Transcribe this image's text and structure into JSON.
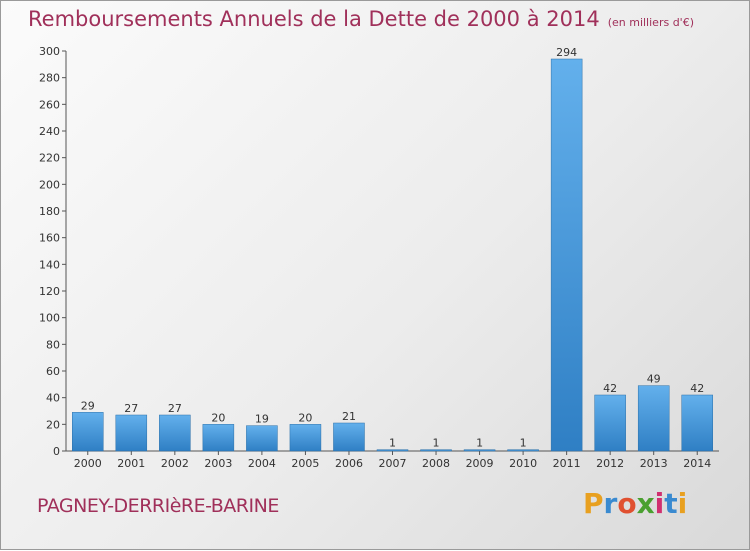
{
  "title": "Remboursements Annuels de la Dette de 2000 à 2014",
  "unit": "(en milliers d'€)",
  "commune": "PAGNEY-DERRIèRE-BARINE",
  "logo": {
    "letters": [
      "P",
      "r",
      "o",
      "x",
      "i",
      "t",
      "i"
    ],
    "colors": [
      "#e8a020",
      "#3a8ad0",
      "#e05030",
      "#4aa030",
      "#d03070",
      "#3a8ad0",
      "#e8a020"
    ]
  },
  "colors": {
    "title": "#a0305a",
    "bar_top": "#63b0ec",
    "bar_bottom": "#2f7fc4"
  },
  "chart_data": {
    "type": "bar",
    "categories": [
      "2000",
      "2001",
      "2002",
      "2003",
      "2004",
      "2005",
      "2006",
      "2007",
      "2008",
      "2009",
      "2010",
      "2011",
      "2012",
      "2013",
      "2014"
    ],
    "values": [
      29,
      27,
      27,
      20,
      19,
      20,
      21,
      1,
      1,
      1,
      1,
      294,
      42,
      49,
      42
    ],
    "ylim": [
      0,
      300
    ],
    "yticks": [
      0,
      20,
      40,
      60,
      80,
      100,
      120,
      140,
      160,
      180,
      200,
      220,
      240,
      260,
      280,
      300
    ],
    "grid": false,
    "data_labels": true
  }
}
